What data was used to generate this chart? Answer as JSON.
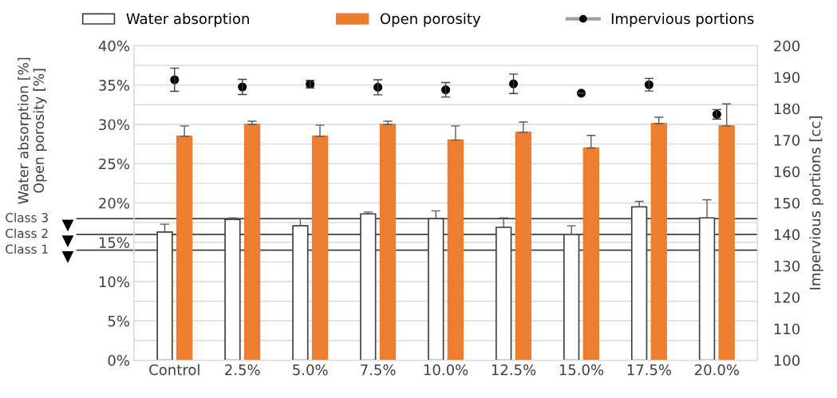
{
  "chart_data": {
    "type": "bar",
    "categories": [
      "Control",
      "2.5%",
      "5.0%",
      "7.5%",
      "10.0%",
      "12.5%",
      "15.0%",
      "17.5%",
      "20.0%"
    ],
    "ylabel": "Water absorption [%]\nOpen porosity [%]",
    "y2label": "Impervious portions [cc]",
    "series": [
      {
        "name": "Water absorption",
        "color": "#ffffff",
        "values": [
          16.3,
          17.9,
          17.1,
          18.6,
          18.0,
          16.9,
          16.0,
          19.5,
          18.1
        ],
        "errors": [
          [
            16.3,
            17.3
          ],
          [
            17.9,
            18.1
          ],
          [
            17.1,
            18.0
          ],
          [
            18.6,
            18.85
          ],
          [
            18.0,
            19.0
          ],
          [
            16.9,
            18.1
          ],
          [
            16.0,
            17.1
          ],
          [
            19.5,
            20.2
          ],
          [
            18.1,
            20.4
          ]
        ]
      },
      {
        "name": "Open porosity",
        "color": "#ed7d31",
        "values": [
          28.5,
          30.0,
          28.5,
          30.0,
          28.0,
          29.0,
          27.0,
          30.1,
          29.8
        ],
        "errors": [
          [
            28.5,
            29.8
          ],
          [
            30.0,
            30.4
          ],
          [
            28.5,
            29.9
          ],
          [
            30.0,
            30.4
          ],
          [
            28.0,
            29.8
          ],
          [
            29.0,
            30.3
          ],
          [
            27.0,
            28.6
          ],
          [
            30.1,
            30.9
          ],
          [
            29.8,
            32.6
          ]
        ]
      },
      {
        "name": "Impervious portions",
        "type": "scatter",
        "axis": "y2",
        "color": "#000000",
        "marker": "circle",
        "values": [
          189.2,
          186.9,
          187.8,
          186.8,
          186.0,
          187.9,
          184.9,
          187.6,
          178.2
        ],
        "errors": [
          3.7,
          2.4,
          1.2,
          2.4,
          2.3,
          3.1,
          null,
          2.0,
          1.5
        ]
      }
    ],
    "ylim": [
      0,
      40
    ],
    "yticks": [
      {
        "value": 0,
        "label": "0%"
      },
      {
        "value": 2.5,
        "label": null
      },
      {
        "value": 5,
        "label": "5%"
      },
      {
        "value": 7.5,
        "label": null
      },
      {
        "value": 10,
        "label": "10%"
      },
      {
        "value": 12.5,
        "label": null
      },
      {
        "value": 15,
        "label": "15%"
      },
      {
        "value": 17.5,
        "label": null
      },
      {
        "value": 20,
        "label": "20%"
      },
      {
        "value": 22.5,
        "label": null
      },
      {
        "value": 25,
        "label": "25%"
      },
      {
        "value": 27.5,
        "label": null
      },
      {
        "value": 30,
        "label": "30%"
      },
      {
        "value": 32.5,
        "label": null
      },
      {
        "value": 35,
        "label": "35%"
      },
      {
        "value": 37.5,
        "label": null
      },
      {
        "value": 40,
        "label": "40%"
      }
    ],
    "y2lim": [
      100,
      200
    ],
    "y2ticks": [
      100,
      110,
      120,
      130,
      140,
      150,
      160,
      170,
      180,
      190,
      200
    ],
    "ref_lines": [
      {
        "axis": "y",
        "value": 18,
        "label": "Class 3",
        "color": "#404040"
      },
      {
        "axis": "y",
        "value": 16,
        "label": "Class 2",
        "color": "#404040"
      },
      {
        "axis": "y",
        "value": 14,
        "label": "Class 1",
        "color": "#404040"
      }
    ],
    "grid": "y",
    "legend": "top"
  }
}
